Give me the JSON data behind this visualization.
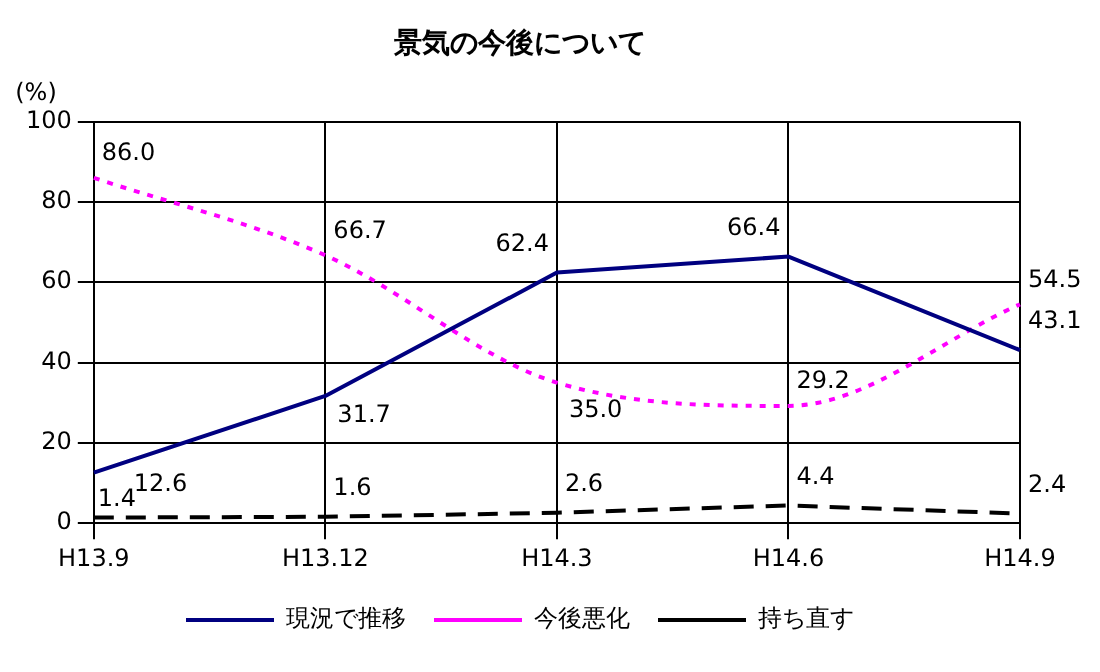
{
  "chart_data": {
    "type": "line",
    "title": "景気の今後について",
    "ylabel": "(%)",
    "categories": [
      "H13.9",
      "H13.12",
      "H14.3",
      "H14.6",
      "H14.9"
    ],
    "series": [
      {
        "name": "現況で推移",
        "color": "#000080",
        "values": [
          12.6,
          31.7,
          62.4,
          66.4,
          43.1
        ],
        "value_labels": [
          "12.6",
          "31.7",
          "62.4",
          "66.4",
          "43.1"
        ],
        "line_style": "solid"
      },
      {
        "name": "今後悪化",
        "color": "#ff00ff",
        "values": [
          86.0,
          66.7,
          35.0,
          29.2,
          54.5
        ],
        "value_labels": [
          "86.0",
          "66.7",
          "35.0",
          "29.2",
          "54.5"
        ],
        "line_style": "dotted"
      },
      {
        "name": "持ち直す",
        "color": "#000000",
        "values": [
          1.4,
          1.6,
          2.6,
          4.4,
          2.4
        ],
        "value_labels": [
          "1.4",
          "1.6",
          "2.6",
          "4.4",
          "2.4"
        ],
        "line_style": "dashed"
      }
    ],
    "ylim": [
      0,
      100
    ],
    "yticks": [
      0,
      20,
      40,
      60,
      80,
      100
    ],
    "grid": true,
    "legend": "bottom",
    "marker": "none",
    "data_labels": true
  }
}
